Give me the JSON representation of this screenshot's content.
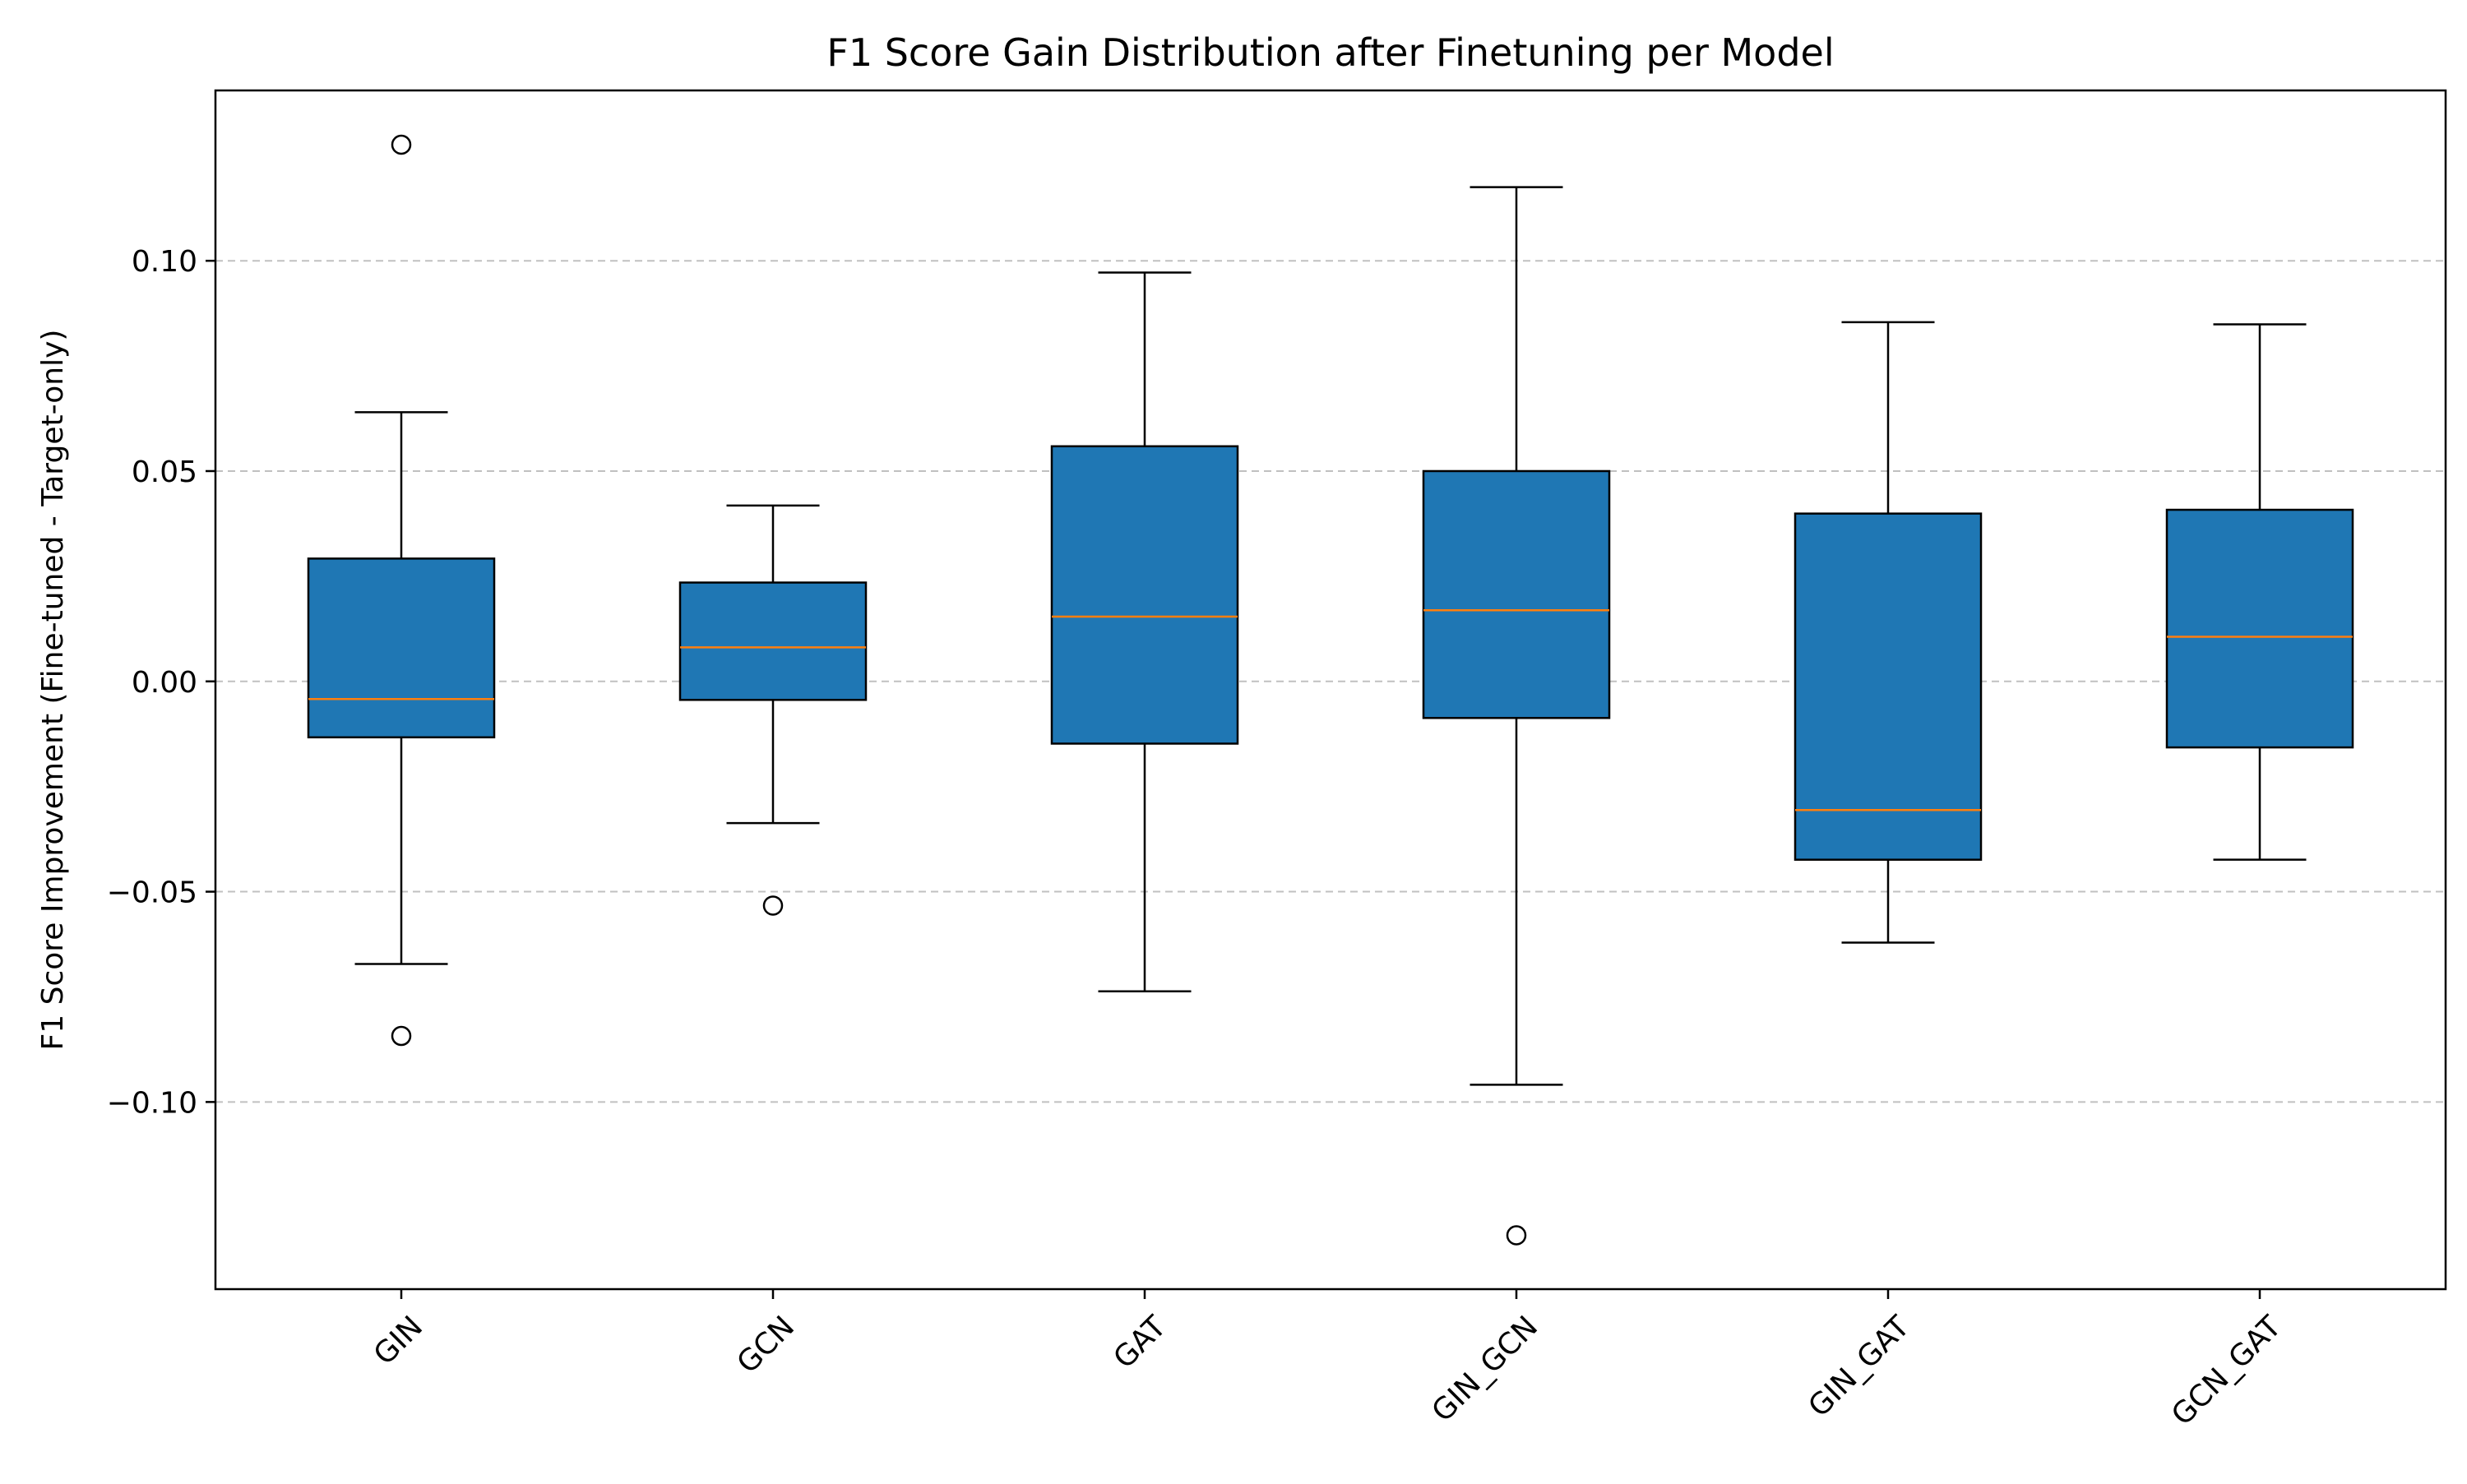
{
  "chart_data": {
    "type": "boxplot",
    "title": "F1 Score Gain Distribution after Finetuning per Model",
    "xlabel": "",
    "ylabel": "F1 Score Improvement (Fine-tuned - Target-only)",
    "ylim": [
      -0.1445,
      0.1405
    ],
    "yticks": [
      -0.1,
      -0.05,
      0.0,
      0.05,
      0.1
    ],
    "ytick_labels": [
      "−0.10",
      "−0.05",
      "0.00",
      "0.05",
      "0.10"
    ],
    "grid": "y-dashed",
    "categories": [
      "GIN",
      "GCN",
      "GAT",
      "GIN_GCN",
      "GIN_GAT",
      "GCN_GAT"
    ],
    "boxes": [
      {
        "label": "GIN",
        "whisker_low": -0.0672,
        "q1": -0.0133,
        "median": -0.0042,
        "q3": 0.0292,
        "whisker_high": 0.064,
        "outliers": [
          0.1276,
          -0.0843
        ]
      },
      {
        "label": "GCN",
        "whisker_low": -0.0337,
        "q1": -0.0044,
        "median": 0.0081,
        "q3": 0.0235,
        "whisker_high": 0.0418,
        "outliers": [
          -0.0533
        ]
      },
      {
        "label": "GAT",
        "whisker_low": -0.0737,
        "q1": -0.0148,
        "median": 0.0154,
        "q3": 0.0559,
        "whisker_high": 0.0972,
        "outliers": []
      },
      {
        "label": "GIN_GCN",
        "whisker_low": -0.0959,
        "q1": -0.0087,
        "median": 0.0169,
        "q3": 0.05,
        "whisker_high": 0.1175,
        "outliers": [
          -0.1317
        ]
      },
      {
        "label": "GIN_GAT",
        "whisker_low": -0.0621,
        "q1": -0.0424,
        "median": -0.0306,
        "q3": 0.0399,
        "whisker_high": 0.0854,
        "outliers": []
      },
      {
        "label": "GCN_GAT",
        "whisker_low": -0.0424,
        "q1": -0.0157,
        "median": 0.0106,
        "q3": 0.0408,
        "whisker_high": 0.0849,
        "outliers": []
      }
    ],
    "colors": {
      "box": "#1f77b4",
      "median": "#ff7f0e",
      "edge": "#000000",
      "grid": "#b0b0b0"
    }
  }
}
